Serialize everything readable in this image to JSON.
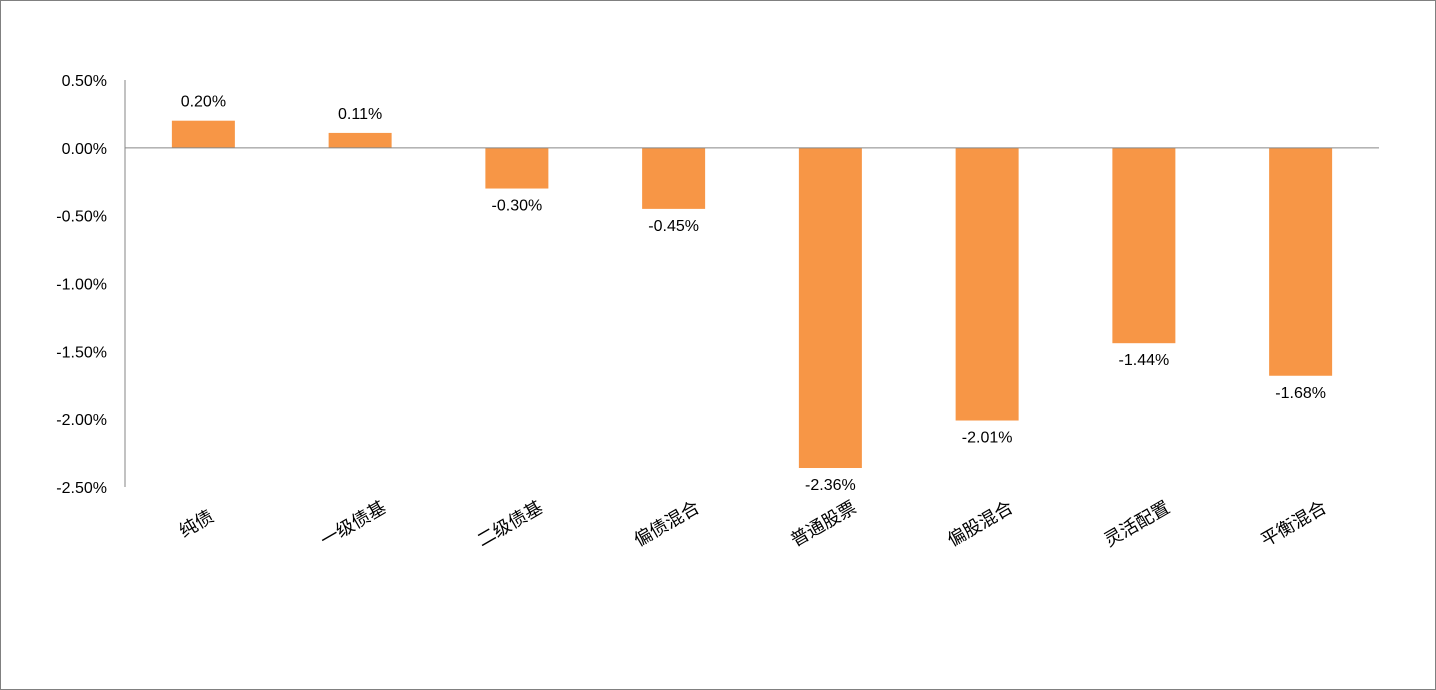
{
  "chart_data": {
    "type": "bar",
    "categories": [
      "纯债",
      "一级债基",
      "二级债基",
      "偏债混合",
      "普通股票",
      "偏股混合",
      "灵活配置",
      "平衡混合"
    ],
    "values": [
      0.2,
      0.11,
      -0.3,
      -0.45,
      -2.36,
      -2.01,
      -1.44,
      -1.68
    ],
    "data_labels": [
      "0.20%",
      "0.11%",
      "-0.30%",
      "-0.45%",
      "-2.36%",
      "-2.01%",
      "-1.44%",
      "-1.68%"
    ],
    "y_ticks": [
      0.5,
      0.0,
      -0.5,
      -1.0,
      -1.5,
      -2.0,
      -2.5
    ],
    "y_tick_labels": [
      "0.50%",
      "0.00%",
      "-0.50%",
      "-1.00%",
      "-1.50%",
      "-2.00%",
      "-2.50%"
    ],
    "ylim": [
      -2.5,
      0.5
    ],
    "title": "",
    "xlabel": "",
    "ylabel": "",
    "grid": false,
    "legend": "none",
    "bar_color": "#F79646",
    "axis_color": "#868686"
  }
}
